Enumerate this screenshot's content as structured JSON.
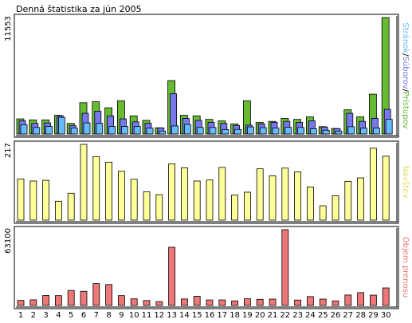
{
  "title": "Denná štatistika za jún 2005",
  "colors": {
    "pages": "#66bb33",
    "files": "#7777ee",
    "hits": "#66bbff",
    "visits": "#ffff99",
    "bytes": "#ee7777",
    "weekend": "#77bb22",
    "frame": "#000000"
  },
  "chart_data": [
    {
      "type": "bar",
      "title": "Denná štatistika za jún 2005",
      "ymax_label": "11553",
      "legend": [
        {
          "text": "Stránok",
          "color": "#66bbff"
        },
        {
          "text": "/",
          "color": "#000000"
        },
        {
          "text": "Súborov",
          "color": "#7777ee"
        },
        {
          "text": "/",
          "color": "#000000"
        },
        {
          "text": "Prístupov",
          "color": "#66bb33"
        }
      ],
      "ylim": [
        0,
        11553
      ],
      "categories": [
        "1",
        "2",
        "3",
        "4",
        "5",
        "6",
        "7",
        "8",
        "9",
        "10",
        "11",
        "12",
        "13",
        "14",
        "15",
        "16",
        "17",
        "18",
        "19",
        "20",
        "21",
        "22",
        "23",
        "24",
        "25",
        "26",
        "27",
        "28",
        "29",
        "30"
      ],
      "series": [
        {
          "name": "Prístupov",
          "values": [
            1500,
            1400,
            1400,
            1850,
            1050,
            3100,
            3200,
            2600,
            3300,
            1800,
            1350,
            620,
            5300,
            1850,
            1800,
            1450,
            1300,
            1000,
            3300,
            1150,
            1250,
            1550,
            1450,
            1700,
            730,
            550,
            2400,
            1700,
            3950,
            11553
          ]
        },
        {
          "name": "Súborov",
          "values": [
            1300,
            1050,
            1100,
            1800,
            850,
            2050,
            2250,
            1800,
            1500,
            1200,
            1050,
            600,
            4000,
            1550,
            1350,
            1150,
            1050,
            850,
            870,
            1000,
            1150,
            1250,
            1150,
            1300,
            690,
            530,
            2050,
            1250,
            1550,
            2450
          ]
        },
        {
          "name": "Stránok",
          "values": [
            920,
            650,
            750,
            1650,
            600,
            1100,
            1050,
            750,
            750,
            740,
            580,
            280,
            800,
            950,
            650,
            650,
            440,
            450,
            700,
            630,
            590,
            660,
            650,
            510,
            370,
            290,
            720,
            580,
            600,
            1450
          ]
        }
      ]
    },
    {
      "type": "bar",
      "ymax_label": "217",
      "legend": [
        {
          "text": "Návštev",
          "color": "#dddd66"
        }
      ],
      "ylim": [
        0,
        217
      ],
      "categories": [
        "1",
        "2",
        "3",
        "4",
        "5",
        "6",
        "7",
        "8",
        "9",
        "10",
        "11",
        "12",
        "13",
        "14",
        "15",
        "16",
        "17",
        "18",
        "19",
        "20",
        "21",
        "22",
        "23",
        "24",
        "25",
        "26",
        "27",
        "28",
        "29",
        "30"
      ],
      "series": [
        {
          "name": "Návštev",
          "values": [
            118,
            112,
            114,
            54,
            77,
            217,
            182,
            166,
            140,
            117,
            81,
            73,
            161,
            150,
            112,
            115,
            151,
            72,
            80,
            147,
            127,
            149,
            138,
            95,
            41,
            70,
            111,
            121,
            206,
            183
          ]
        }
      ]
    },
    {
      "type": "bar",
      "ymax_label": "63100",
      "legend": [
        {
          "text": "Objem prenosu",
          "color": "#ee7777"
        }
      ],
      "ylim": [
        0,
        63100
      ],
      "categories": [
        "1",
        "2",
        "3",
        "4",
        "5",
        "6",
        "7",
        "8",
        "9",
        "10",
        "11",
        "12",
        "13",
        "14",
        "15",
        "16",
        "17",
        "18",
        "19",
        "20",
        "21",
        "22",
        "23",
        "24",
        "25",
        "26",
        "27",
        "28",
        "29",
        "30"
      ],
      "series": [
        {
          "name": "Objem prenosu",
          "values": [
            4200,
            4700,
            8300,
            8200,
            12500,
            11800,
            18200,
            17400,
            8200,
            5500,
            4100,
            3200,
            48500,
            5400,
            7700,
            4600,
            4600,
            3800,
            5600,
            5100,
            5300,
            63100,
            4500,
            7400,
            5300,
            3800,
            8700,
            10700,
            8600,
            14600
          ]
        }
      ]
    }
  ],
  "x_labels": [
    {
      "text": "1",
      "weekend": false
    },
    {
      "text": "2",
      "weekend": false
    },
    {
      "text": "3",
      "weekend": false
    },
    {
      "text": "4",
      "weekend": true
    },
    {
      "text": "5",
      "weekend": true
    },
    {
      "text": "6",
      "weekend": false
    },
    {
      "text": "7",
      "weekend": false
    },
    {
      "text": "8",
      "weekend": false
    },
    {
      "text": "9",
      "weekend": false
    },
    {
      "text": "10",
      "weekend": false
    },
    {
      "text": "11",
      "weekend": true
    },
    {
      "text": "12",
      "weekend": true
    },
    {
      "text": "13",
      "weekend": false
    },
    {
      "text": "14",
      "weekend": false
    },
    {
      "text": "15",
      "weekend": false
    },
    {
      "text": "16",
      "weekend": false
    },
    {
      "text": "17",
      "weekend": false
    },
    {
      "text": "18",
      "weekend": true
    },
    {
      "text": "19",
      "weekend": true
    },
    {
      "text": "20",
      "weekend": false
    },
    {
      "text": "21",
      "weekend": false
    },
    {
      "text": "22",
      "weekend": false
    },
    {
      "text": "23",
      "weekend": false
    },
    {
      "text": "24",
      "weekend": false
    },
    {
      "text": "25",
      "weekend": true
    },
    {
      "text": "26",
      "weekend": true
    },
    {
      "text": "27",
      "weekend": false
    },
    {
      "text": "28",
      "weekend": false
    },
    {
      "text": "29",
      "weekend": false
    },
    {
      "text": "30",
      "weekend": false
    }
  ]
}
